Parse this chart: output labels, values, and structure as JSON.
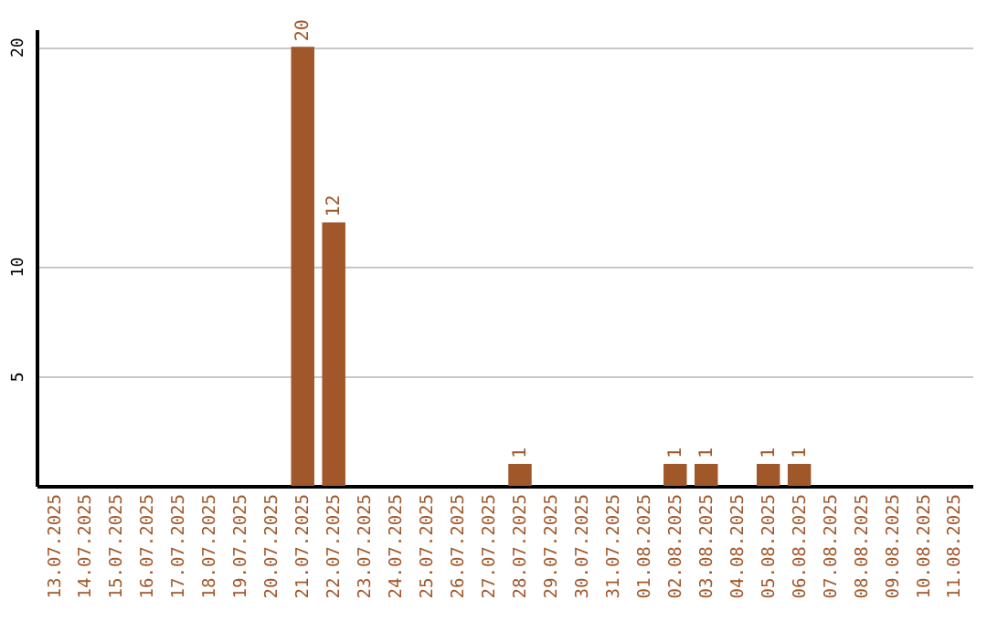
{
  "chart_data": {
    "type": "bar",
    "categories": [
      "13.07.2025",
      "14.07.2025",
      "15.07.2025",
      "16.07.2025",
      "17.07.2025",
      "18.07.2025",
      "19.07.2025",
      "20.07.2025",
      "21.07.2025",
      "22.07.2025",
      "23.07.2025",
      "24.07.2025",
      "25.07.2025",
      "26.07.2025",
      "27.07.2025",
      "28.07.2025",
      "29.07.2025",
      "30.07.2025",
      "31.07.2025",
      "01.08.2025",
      "02.08.2025",
      "03.08.2025",
      "04.08.2025",
      "05.08.2025",
      "06.08.2025",
      "07.08.2025",
      "08.08.2025",
      "09.08.2025",
      "10.08.2025",
      "11.08.2025"
    ],
    "values": [
      0,
      0,
      0,
      0,
      0,
      0,
      0,
      0,
      20,
      12,
      0,
      0,
      0,
      0,
      0,
      1,
      0,
      0,
      0,
      0,
      1,
      1,
      0,
      1,
      1,
      0,
      0,
      0,
      0,
      0
    ],
    "value_labels": [
      null,
      null,
      null,
      null,
      null,
      null,
      null,
      null,
      "20",
      "12",
      null,
      null,
      null,
      null,
      null,
      "1",
      null,
      null,
      null,
      null,
      "1",
      "1",
      null,
      "1",
      "1",
      null,
      null,
      null,
      null,
      null
    ],
    "color": "#a0572a",
    "ylim": [
      0,
      20.8
    ],
    "yticks": [
      5,
      10,
      20
    ],
    "grid": "y"
  }
}
